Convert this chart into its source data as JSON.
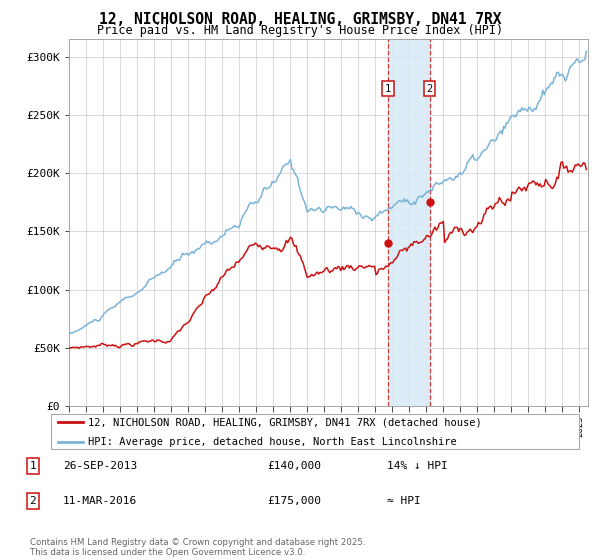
{
  "title": "12, NICHOLSON ROAD, HEALING, GRIMSBY, DN41 7RX",
  "subtitle": "Price paid vs. HM Land Registry's House Price Index (HPI)",
  "ylabel_ticks": [
    "£0",
    "£50K",
    "£100K",
    "£150K",
    "£200K",
    "£250K",
    "£300K"
  ],
  "ytick_vals": [
    0,
    50000,
    100000,
    150000,
    200000,
    250000,
    300000
  ],
  "ylim": [
    0,
    315000
  ],
  "xlim_start": 1995.0,
  "xlim_end": 2025.5,
  "hpi_color": "#7ab4d8",
  "price_color": "#cc1111",
  "marker_color": "#cc1111",
  "vline_color": "#cc1111",
  "shade_color": "#d8eaf7",
  "point1_x": 2013.74,
  "point1_y": 140000,
  "point2_x": 2016.19,
  "point2_y": 175000,
  "legend_line1": "12, NICHOLSON ROAD, HEALING, GRIMSBY, DN41 7RX (detached house)",
  "legend_line2": "HPI: Average price, detached house, North East Lincolnshire",
  "annotation1_date": "26-SEP-2013",
  "annotation1_price": "£140,000",
  "annotation1_hpi": "14% ↓ HPI",
  "annotation2_date": "11-MAR-2016",
  "annotation2_price": "£175,000",
  "annotation2_hpi": "≈ HPI",
  "copyright": "Contains HM Land Registry data © Crown copyright and database right 2025.\nThis data is licensed under the Open Government Licence v3.0.",
  "background_color": "#ffffff",
  "grid_color": "#cccccc"
}
